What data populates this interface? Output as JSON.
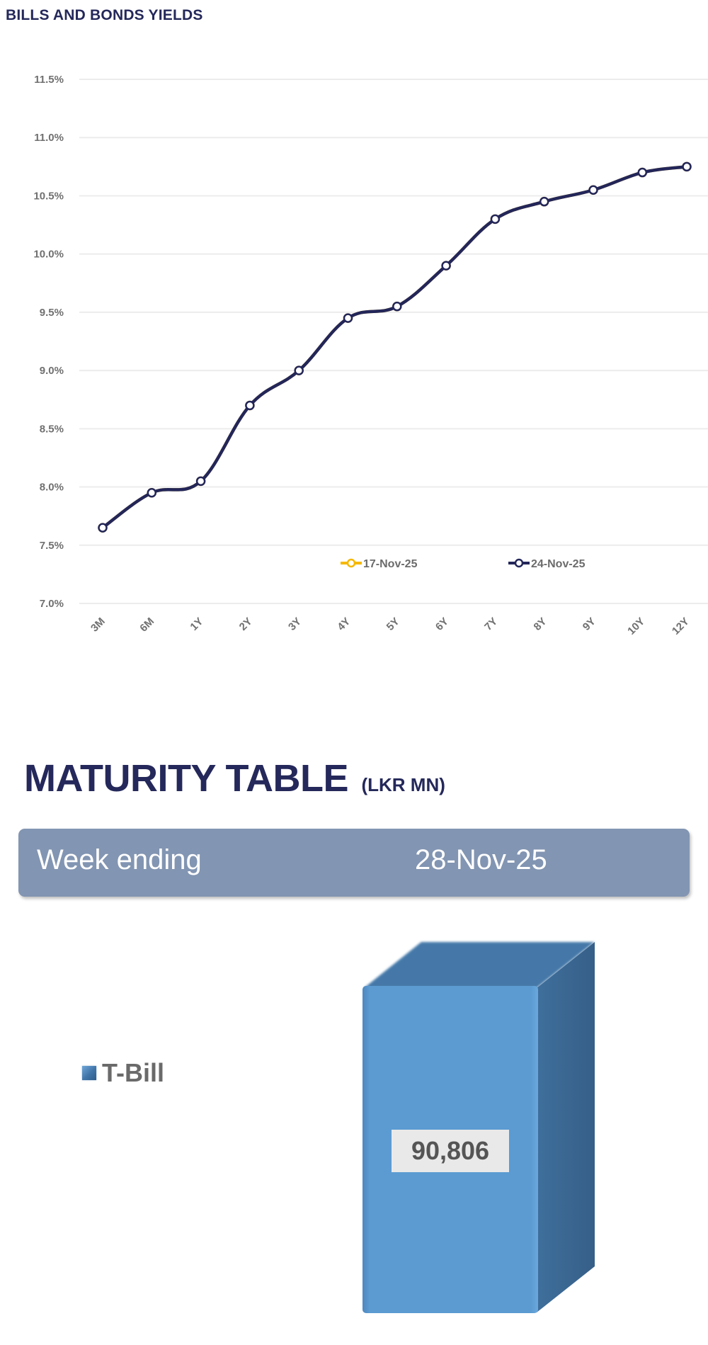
{
  "yields_chart": {
    "title": "BILLS AND BONDS YIELDS"
  },
  "maturity": {
    "title": "MATURITY TABLE",
    "unit": "(LKR MN)",
    "week_label": "Week ending",
    "week_value": "28-Nov-25",
    "legend_label": "T-Bill",
    "bar_value_label": "90,806"
  },
  "colors": {
    "series_24nov": "#232659",
    "series_17nov": "#f5b800",
    "title": "#24285a",
    "week_bar": "#8295b2",
    "bar_front": "#5b9bd2",
    "bar_top": "#4478a8",
    "bar_side": "#3a6690",
    "gridline": "#ececec"
  },
  "chart_data": [
    {
      "type": "line",
      "title": "BILLS AND BONDS YIELDS",
      "xlabel": "",
      "ylabel": "",
      "categories": [
        "3M",
        "6M",
        "1Y",
        "2Y",
        "3Y",
        "4Y",
        "5Y",
        "6Y",
        "7Y",
        "8Y",
        "9Y",
        "10Y",
        "12Y"
      ],
      "y_ticks": [
        "7.0%",
        "7.5%",
        "8.0%",
        "8.5%",
        "9.0%",
        "9.5%",
        "10.0%",
        "10.5%",
        "11.0%",
        "11.5%"
      ],
      "ylim": [
        7.0,
        11.5
      ],
      "grid": true,
      "legend_position": "inside-bottom-right",
      "series": [
        {
          "name": "17-Nov-25",
          "color": "#f5b800",
          "note": "line hidden behind 24-Nov-25 series; only legend entry visible",
          "values": [
            7.65,
            7.95,
            8.05,
            8.7,
            9.0,
            9.45,
            9.55,
            9.9,
            10.3,
            10.45,
            10.55,
            10.7,
            10.75
          ]
        },
        {
          "name": "24-Nov-25",
          "color": "#232659",
          "values": [
            7.65,
            7.95,
            8.05,
            8.7,
            9.0,
            9.45,
            9.55,
            9.9,
            10.3,
            10.45,
            10.55,
            10.7,
            10.75
          ]
        }
      ]
    },
    {
      "type": "bar",
      "title": "MATURITY TABLE (LKR MN)",
      "subtitle": "Week ending 28-Nov-25",
      "categories": [
        "T-Bill"
      ],
      "values": [
        90806
      ],
      "data_labels": [
        "90,806"
      ],
      "legend": [
        "T-Bill"
      ],
      "legend_position": "left",
      "style": "3d-column"
    }
  ]
}
